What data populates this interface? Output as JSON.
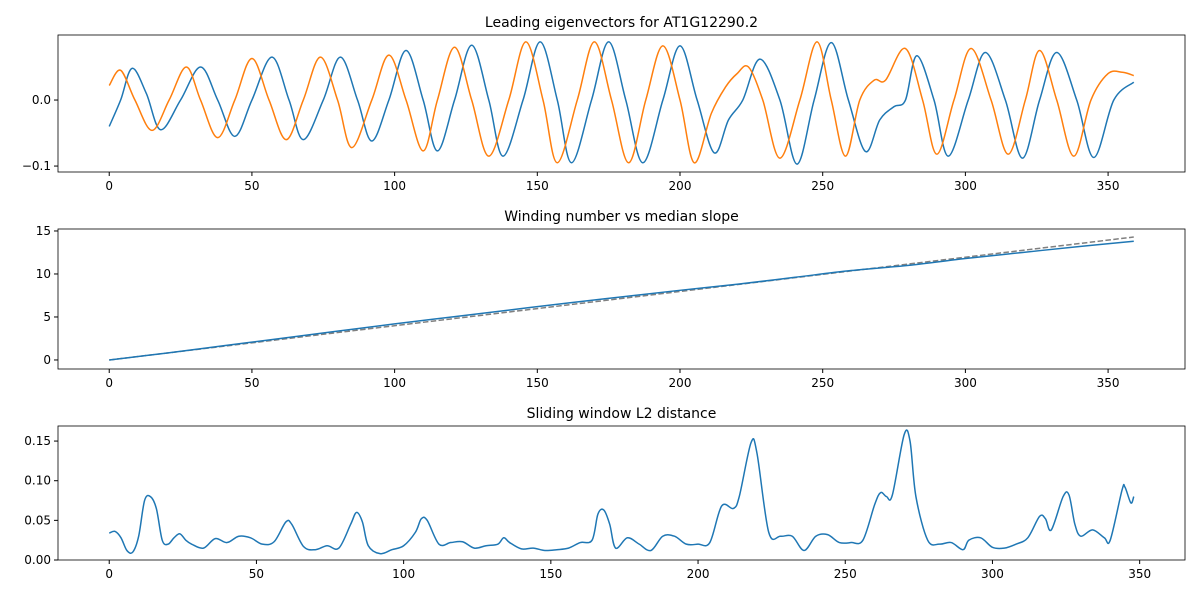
{
  "chart_data": [
    {
      "type": "line",
      "title": "Leading eigenvectors for AT1G12290.2",
      "xlim": [
        -17.95,
        376.95
      ],
      "ylim": [
        -0.109,
        0.0985
      ],
      "xticks": [
        0,
        50,
        100,
        150,
        200,
        250,
        300,
        350
      ],
      "yticks": [
        {
          "value": -0.1,
          "label": "−0.1"
        },
        {
          "value": 0,
          "label": "0.0"
        }
      ],
      "series": [
        {
          "color": "#1f77b4",
          "x": [
            0,
            4,
            8,
            13,
            18,
            25,
            32,
            38,
            44,
            50,
            57,
            63,
            68,
            75,
            81,
            87,
            92,
            98,
            104,
            110,
            115,
            121,
            127,
            133,
            138,
            145,
            151,
            157,
            162,
            169,
            175,
            181,
            187,
            194,
            200,
            206,
            212,
            217,
            222,
            228,
            235,
            241,
            247,
            253,
            259,
            265,
            270,
            275,
            279,
            283,
            289,
            294,
            301,
            307,
            314,
            320,
            326,
            332,
            339,
            345,
            352,
            359
          ],
          "values": [
            -0.04,
            0.0,
            0.048,
            0.01,
            -0.045,
            0.0,
            0.05,
            0.0,
            -0.055,
            0.0,
            0.065,
            0.0,
            -0.06,
            0.0,
            0.065,
            0.0,
            -0.062,
            0.0,
            0.075,
            0.0,
            -0.077,
            0.0,
            0.083,
            0.0,
            -0.085,
            0.0,
            0.088,
            0.0,
            -0.095,
            0.0,
            0.088,
            0.0,
            -0.095,
            0.0,
            0.082,
            0.0,
            -0.08,
            -0.03,
            0.0,
            0.062,
            0.0,
            -0.097,
            0.0,
            0.087,
            0.0,
            -0.078,
            -0.03,
            -0.01,
            0.0,
            0.067,
            0.0,
            -0.085,
            0.0,
            0.072,
            0.0,
            -0.088,
            0.0,
            0.072,
            0.0,
            -0.087,
            0.0,
            0.027
          ]
        },
        {
          "color": "#ff7f0e",
          "x": [
            0,
            4,
            9,
            15,
            21,
            27,
            32,
            38,
            44,
            50,
            56,
            62,
            68,
            74,
            80,
            85,
            92,
            98,
            104,
            110,
            115,
            121,
            127,
            133,
            140,
            146,
            152,
            157,
            164,
            170,
            176,
            182,
            188,
            194,
            200,
            205,
            211,
            216,
            220,
            224,
            229,
            235,
            242,
            248,
            253,
            258,
            263,
            268,
            272,
            279,
            285,
            290,
            296,
            302,
            309,
            315,
            321,
            326,
            332,
            338,
            344,
            350,
            355,
            359
          ],
          "values": [
            0.022,
            0.045,
            0.0,
            -0.046,
            0.0,
            0.05,
            0.0,
            -0.057,
            0.0,
            0.063,
            0.0,
            -0.06,
            0.0,
            0.065,
            0.0,
            -0.072,
            0.0,
            0.068,
            0.0,
            -0.077,
            0.0,
            0.08,
            0.0,
            -0.085,
            0.0,
            0.088,
            0.0,
            -0.095,
            0.0,
            0.088,
            0.0,
            -0.095,
            0.0,
            0.082,
            0.0,
            -0.095,
            -0.02,
            0.02,
            0.04,
            0.05,
            0.0,
            -0.088,
            0.0,
            0.088,
            0.0,
            -0.085,
            0.0,
            0.03,
            0.03,
            0.078,
            0.0,
            -0.082,
            0.0,
            0.078,
            0.0,
            -0.082,
            0.0,
            0.075,
            0.0,
            -0.085,
            0.0,
            0.04,
            0.042,
            0.037
          ]
        }
      ]
    },
    {
      "type": "line",
      "title": "Winding number vs median slope",
      "xlim": [
        -17.95,
        376.95
      ],
      "ylim": [
        -1.05,
        15.23
      ],
      "xticks": [
        0,
        50,
        100,
        150,
        200,
        250,
        300,
        350
      ],
      "yticks": [
        0,
        5,
        10,
        15
      ],
      "series": [
        {
          "color": "#808080",
          "linestyle": "dashed",
          "x": [
            0,
            359
          ],
          "values": [
            0,
            14.3
          ]
        },
        {
          "color": "#1f77b4",
          "x": [
            0,
            20,
            40,
            60,
            80,
            100,
            120,
            140,
            160,
            180,
            200,
            220,
            240,
            260,
            280,
            300,
            320,
            340,
            359
          ],
          "values": [
            0,
            0.8,
            1.65,
            2.5,
            3.35,
            4.2,
            5.0,
            5.8,
            6.6,
            7.35,
            8.1,
            8.8,
            9.6,
            10.4,
            11.0,
            11.8,
            12.5,
            13.2,
            13.8
          ]
        }
      ]
    },
    {
      "type": "line",
      "title": "Sliding window L2 distance",
      "xlim": [
        -17.4,
        365.4
      ],
      "ylim": [
        0,
        0.169
      ],
      "xticks": [
        0,
        50,
        100,
        150,
        200,
        250,
        300,
        350
      ],
      "yticks": [
        {
          "value": 0,
          "label": "0.00"
        },
        {
          "value": 0.05,
          "label": "0.05"
        },
        {
          "value": 0.1,
          "label": "0.10"
        },
        {
          "value": 0.15,
          "label": "0.15"
        }
      ],
      "series": [
        {
          "color": "#1f77b4",
          "x": [
            0,
            2,
            4,
            6,
            8,
            10,
            12,
            14,
            16,
            18,
            20,
            22,
            24,
            26,
            28,
            32,
            36,
            40,
            44,
            48,
            52,
            56,
            60,
            62,
            66,
            70,
            74,
            78,
            82,
            84,
            86,
            88,
            92,
            96,
            100,
            104,
            106,
            108,
            112,
            116,
            120,
            124,
            128,
            132,
            134,
            136,
            140,
            144,
            148,
            152,
            156,
            160,
            164,
            166,
            168,
            170,
            172,
            176,
            180,
            184,
            188,
            192,
            196,
            200,
            204,
            208,
            212,
            214,
            218,
            220,
            224,
            228,
            232,
            236,
            240,
            244,
            248,
            252,
            256,
            260,
            262,
            264,
            266,
            270,
            272,
            274,
            278,
            282,
            286,
            290,
            292,
            296,
            300,
            304,
            308,
            312,
            316,
            318,
            320,
            324,
            326,
            328,
            330,
            334,
            338,
            340,
            344,
            345,
            347,
            348
          ],
          "values": [
            0.034,
            0.036,
            0.028,
            0.012,
            0.01,
            0.03,
            0.075,
            0.08,
            0.065,
            0.025,
            0.02,
            0.028,
            0.033,
            0.025,
            0.02,
            0.015,
            0.027,
            0.022,
            0.03,
            0.028,
            0.02,
            0.023,
            0.048,
            0.045,
            0.017,
            0.013,
            0.018,
            0.015,
            0.045,
            0.06,
            0.048,
            0.018,
            0.008,
            0.013,
            0.018,
            0.035,
            0.052,
            0.05,
            0.02,
            0.022,
            0.023,
            0.015,
            0.018,
            0.02,
            0.028,
            0.022,
            0.014,
            0.015,
            0.012,
            0.013,
            0.015,
            0.022,
            0.025,
            0.058,
            0.063,
            0.045,
            0.015,
            0.028,
            0.02,
            0.012,
            0.03,
            0.03,
            0.02,
            0.02,
            0.022,
            0.068,
            0.065,
            0.08,
            0.148,
            0.135,
            0.035,
            0.03,
            0.03,
            0.012,
            0.03,
            0.032,
            0.022,
            0.022,
            0.025,
            0.07,
            0.085,
            0.08,
            0.082,
            0.158,
            0.15,
            0.08,
            0.025,
            0.02,
            0.022,
            0.013,
            0.025,
            0.028,
            0.016,
            0.015,
            0.02,
            0.028,
            0.055,
            0.052,
            0.038,
            0.08,
            0.082,
            0.045,
            0.03,
            0.038,
            0.028,
            0.025,
            0.088,
            0.092,
            0.072,
            0.08
          ]
        }
      ]
    }
  ]
}
